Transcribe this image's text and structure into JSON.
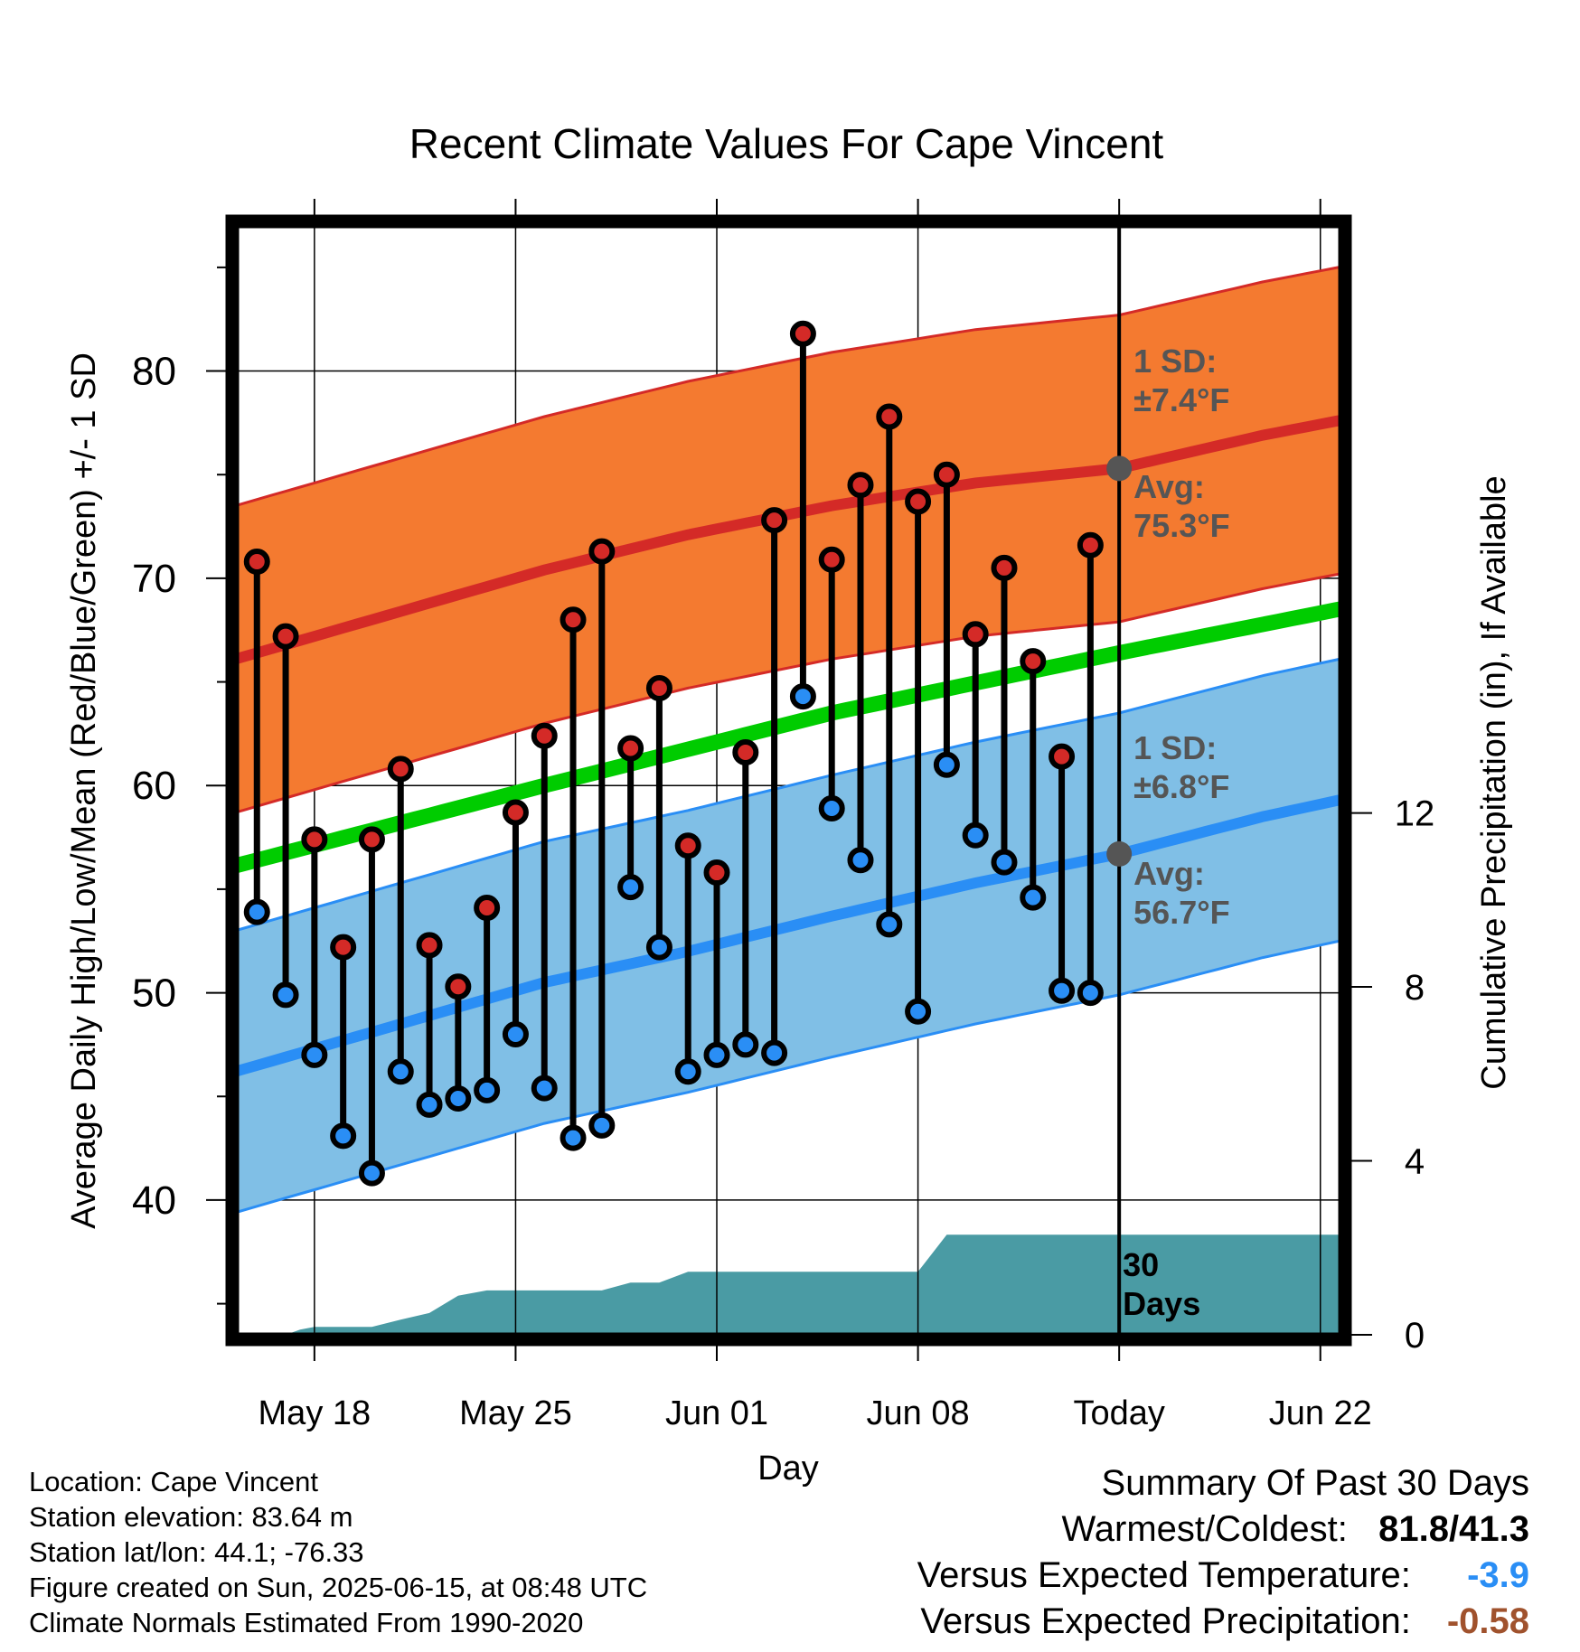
{
  "chart_data": {
    "type": "line",
    "title": "Recent Climate Values For Cape Vincent",
    "xlabel": "Day",
    "ylabel": "Average Daily High/Low/Mean (Red/Blue/Green) +/- 1 SD",
    "y2label": "Cumulative Precipitation (in), If Available",
    "ylim": [
      33.5,
      87
    ],
    "y2lim": [
      0,
      25.5
    ],
    "xlim": [
      -0.7,
      37.7
    ],
    "x_ticks": [
      {
        "x": 2,
        "label": "May 18"
      },
      {
        "x": 9,
        "label": "May 25"
      },
      {
        "x": 16,
        "label": "Jun 01"
      },
      {
        "x": 23,
        "label": "Jun 08"
      },
      {
        "x": 30,
        "label": "Today"
      },
      {
        "x": 37,
        "label": "Jun 22"
      }
    ],
    "y_ticks": [
      40,
      50,
      60,
      70,
      80
    ],
    "y2_ticks": [
      0,
      4,
      8,
      12
    ],
    "grid": true,
    "today_x": 30,
    "daily_high": [
      70.8,
      67.2,
      57.4,
      52.2,
      57.4,
      60.8,
      52.3,
      50.3,
      54.1,
      58.7,
      62.4,
      68.0,
      71.3,
      61.8,
      64.7,
      57.1,
      55.8,
      61.6,
      72.8,
      81.8,
      70.9,
      74.5,
      77.8,
      73.7,
      75.0,
      67.3,
      70.5,
      66.0,
      61.4,
      71.6
    ],
    "daily_low": [
      53.9,
      49.9,
      47.0,
      43.1,
      41.3,
      46.2,
      44.6,
      44.9,
      45.3,
      48.0,
      45.4,
      43.0,
      43.6,
      55.1,
      52.2,
      46.2,
      47.0,
      47.5,
      47.1,
      64.3,
      58.9,
      56.4,
      53.3,
      49.1,
      61.0,
      57.6,
      56.3,
      54.6,
      50.1,
      50.0
    ],
    "normal_high": {
      "x": [
        0,
        5,
        10,
        15,
        20,
        25,
        30,
        35,
        38
      ],
      "values": [
        66.4,
        68.4,
        70.4,
        72.1,
        73.5,
        74.6,
        75.3,
        76.9,
        77.7
      ]
    },
    "normal_high_sd": 7.4,
    "normal_mean": {
      "x": [
        0,
        10,
        20,
        30,
        38
      ],
      "values": [
        56.4,
        60.0,
        63.5,
        66.4,
        68.6
      ]
    },
    "normal_low": {
      "x": [
        0,
        5,
        10,
        15,
        20,
        25,
        30,
        35,
        38
      ],
      "values": [
        46.5,
        48.5,
        50.5,
        52.0,
        53.7,
        55.3,
        56.7,
        58.5,
        59.4
      ]
    },
    "normal_low_sd": 6.8,
    "precip_cum": {
      "x": [
        1,
        1.5,
        2,
        3,
        4,
        5,
        6,
        7,
        8,
        9,
        10,
        11,
        12,
        13,
        14,
        15,
        16,
        17,
        18,
        19,
        20,
        21,
        22,
        23,
        24,
        25,
        26,
        27,
        28,
        29,
        30,
        31,
        32,
        33,
        34,
        35,
        36,
        37,
        38
      ],
      "values": [
        0,
        0.12,
        0.18,
        0.18,
        0.18,
        0.35,
        0.5,
        0.9,
        1.02,
        1.02,
        1.02,
        1.02,
        1.02,
        1.2,
        1.2,
        1.45,
        1.45,
        1.45,
        1.45,
        1.45,
        1.45,
        1.45,
        1.45,
        1.45,
        2.3,
        2.3,
        2.3,
        2.3,
        2.3,
        2.3,
        2.3,
        2.3,
        2.3,
        2.3,
        2.3,
        2.3,
        2.3,
        2.3,
        2.3
      ]
    },
    "annotations": {
      "high_sd_label": "1 SD:",
      "high_sd_value": "±7.4°F",
      "high_avg_label": "Avg:",
      "high_avg_value": "75.3°F",
      "low_sd_label": "1 SD:",
      "low_sd_value": "±6.8°F",
      "low_avg_label": "Avg:",
      "low_avg_value": "56.7°F",
      "days_number": "30",
      "days_label": "Days"
    },
    "colors": {
      "high_band": "#f47a30",
      "high_line": "#d42a27",
      "mean_line": "#00cc00",
      "low_band": "#80bfe6",
      "low_line": "#2a8ef5",
      "high_dot": "#d42a27",
      "low_dot": "#2a8ef5",
      "precip": "#4a9ba4",
      "annotation": "#555555"
    }
  },
  "station": {
    "location": "Location: Cape Vincent",
    "elevation": "Station elevation: 83.64 m",
    "latlon": "Station lat/lon: 44.1; -76.33",
    "created": "Figure created on Sun, 2025-06-15, at 08:48 UTC",
    "normals": "Climate Normals Estimated From 1990-2020"
  },
  "summary": {
    "title": "Summary Of Past 30 Days",
    "warm_cold_label": "Warmest/Coldest:",
    "warm_cold_value": "81.8/41.3",
    "temp_label": "Versus Expected Temperature:",
    "temp_value": "-3.9",
    "temp_color": "#2a8ef5",
    "precip_label": "Versus Expected Precipitation:",
    "precip_value": "-0.58",
    "precip_color": "#a0522d"
  }
}
